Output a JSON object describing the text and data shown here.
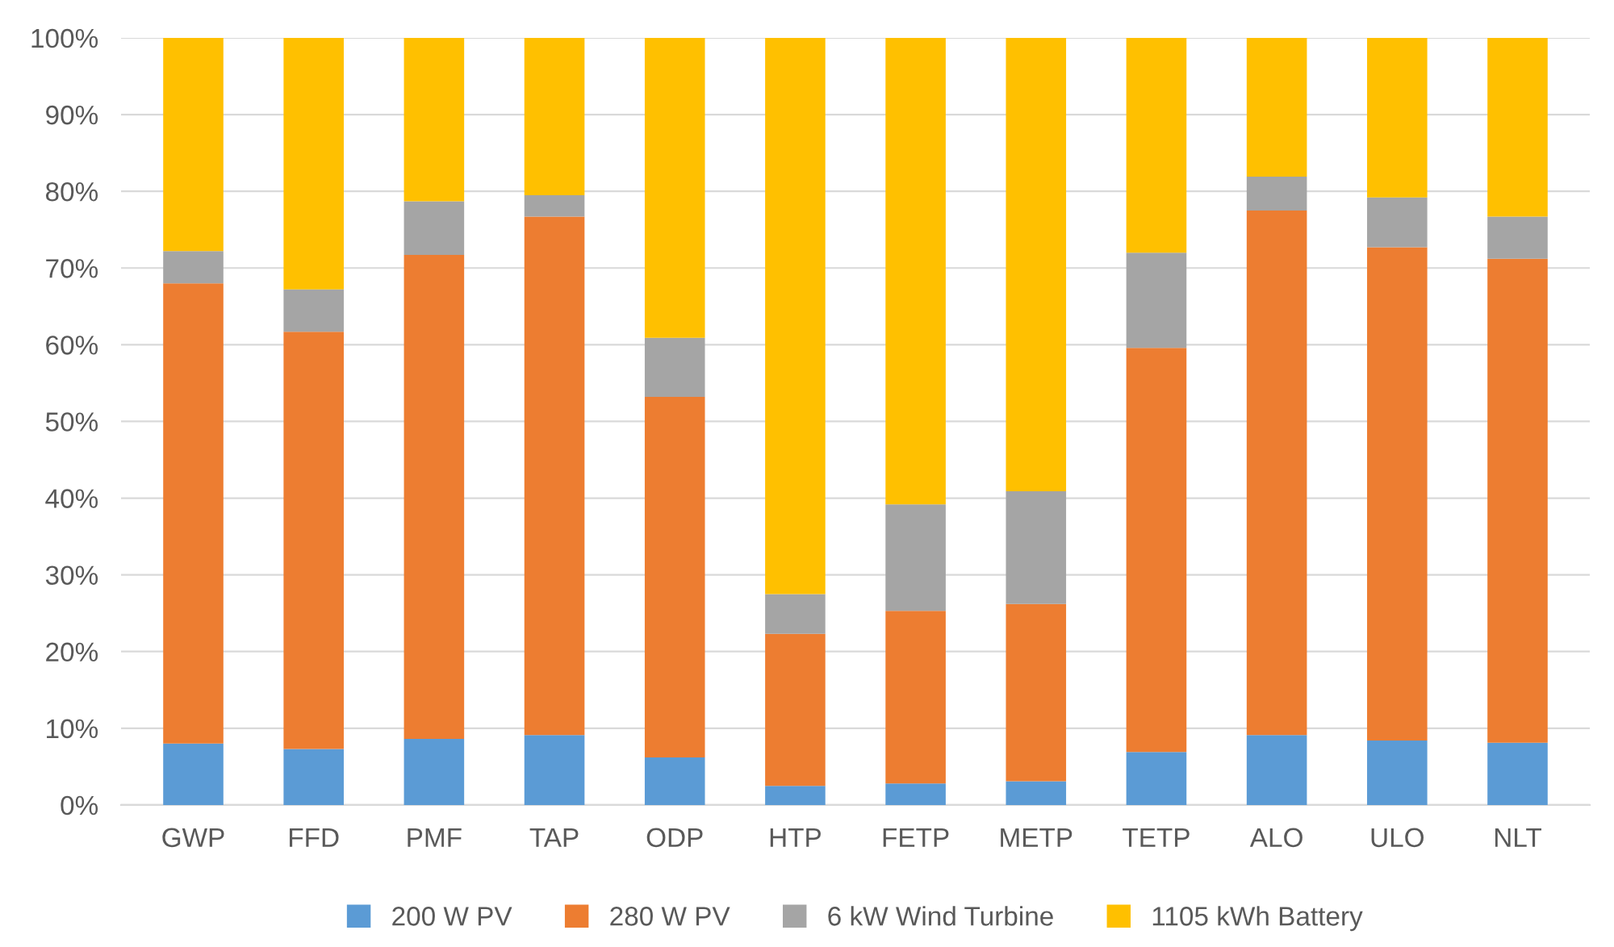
{
  "chart_data": {
    "type": "bar",
    "stacked": true,
    "categories": [
      "GWP",
      "FFD",
      "PMF",
      "TAP",
      "ODP",
      "HTP",
      "FETP",
      "METP",
      "TETP",
      "ALO",
      "ULO",
      "NLT"
    ],
    "series": [
      {
        "name": "200 W PV",
        "color": "#5b9bd5",
        "values": [
          8,
          7.3,
          8.6,
          9.1,
          6.2,
          2.5,
          2.8,
          3.1,
          6.9,
          9.1,
          8.4,
          8.1
        ]
      },
      {
        "name": "280 W PV",
        "color": "#ed7d31",
        "values": [
          60,
          54.4,
          63.1,
          67.6,
          47.0,
          19.8,
          22.5,
          23.1,
          52.7,
          68.4,
          64.3,
          63.1
        ]
      },
      {
        "name": "6 kW Wind Turbine",
        "color": "#a5a5a5",
        "values": [
          4.2,
          5.5,
          7.0,
          2.8,
          7.7,
          5.2,
          13.9,
          14.7,
          12.4,
          4.4,
          6.5,
          5.5
        ]
      },
      {
        "name": "1105 kWh Battery",
        "color": "#ffc000",
        "values": [
          27.8,
          32.8,
          21.3,
          20.5,
          39.1,
          72.5,
          60.8,
          59.1,
          28.0,
          18.1,
          20.8,
          23.3
        ]
      }
    ],
    "ylim": [
      0,
      100
    ],
    "yticks": [
      {
        "value": 0,
        "label": "0%"
      },
      {
        "value": 10,
        "label": "10%"
      },
      {
        "value": 20,
        "label": "20%"
      },
      {
        "value": 30,
        "label": "30%"
      },
      {
        "value": 40,
        "label": "40%"
      },
      {
        "value": 50,
        "label": "50%"
      },
      {
        "value": 60,
        "label": "60%"
      },
      {
        "value": 70,
        "label": "70%"
      },
      {
        "value": 80,
        "label": "80%"
      },
      {
        "value": 90,
        "label": "90%"
      },
      {
        "value": 100,
        "label": "100%"
      }
    ],
    "grid": "y",
    "legend": "bottom"
  }
}
